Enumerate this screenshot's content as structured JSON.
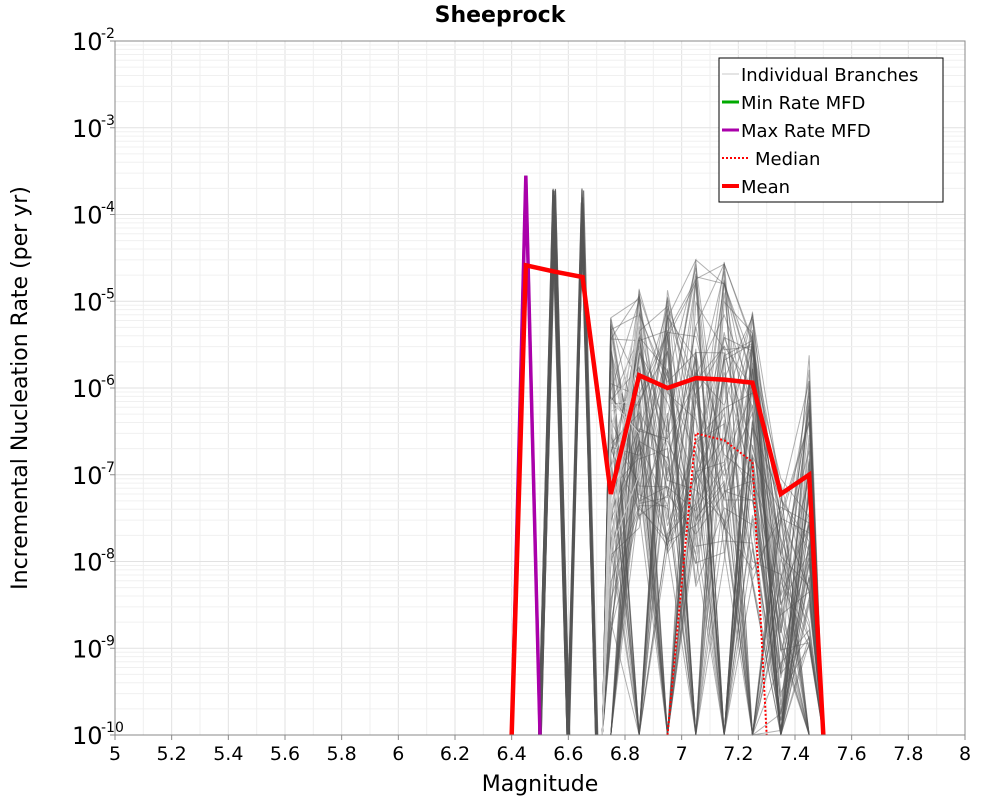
{
  "chart_data": {
    "type": "line",
    "title": "Sheeprock",
    "xlabel": "Magnitude",
    "ylabel": "Incremental Nucleation Rate (per yr)",
    "xlim": [
      5,
      8
    ],
    "ylim": [
      1e-10,
      0.01
    ],
    "yscale": "log",
    "grid": true,
    "legend_position": "top-right",
    "x_ticks": [
      "5",
      "5.2",
      "5.4",
      "5.6",
      "5.8",
      "6",
      "6.2",
      "6.4",
      "6.6",
      "6.8",
      "7",
      "7.2",
      "7.4",
      "7.6",
      "7.8",
      "8"
    ],
    "y_ticks": [
      {
        "base": "10",
        "exp": "-2"
      },
      {
        "base": "10",
        "exp": "-3"
      },
      {
        "base": "10",
        "exp": "-4"
      },
      {
        "base": "10",
        "exp": "-5"
      },
      {
        "base": "10",
        "exp": "-6"
      },
      {
        "base": "10",
        "exp": "-7"
      },
      {
        "base": "10",
        "exp": "-8"
      },
      {
        "base": "10",
        "exp": "-9"
      },
      {
        "base": "10",
        "exp": "-10"
      }
    ],
    "legend": [
      {
        "label": "Individual Branches",
        "color": "#c8c8c8",
        "style": "solid"
      },
      {
        "label": "Min Rate MFD",
        "color": "#00aa00",
        "style": "solid"
      },
      {
        "label": "Max Rate MFD",
        "color": "#aa00aa",
        "style": "solid"
      },
      {
        "label": "Median",
        "color": "#ff0000",
        "style": "dotted"
      },
      {
        "label": "Mean",
        "color": "#ff0000",
        "style": "solid"
      }
    ],
    "series": [
      {
        "name": "Min Rate MFD",
        "color": "#00aa00",
        "x": [
          6.4,
          6.45,
          6.5
        ],
        "y": [
          1e-10,
          0.00028,
          1e-10
        ]
      },
      {
        "name": "Max Rate MFD",
        "color": "#aa00aa",
        "x": [
          6.4,
          6.45,
          6.5
        ],
        "y": [
          1e-10,
          0.00028,
          1e-10
        ]
      },
      {
        "name": "Median",
        "color": "#ff0000",
        "x": [
          6.95,
          7.05,
          7.15,
          7.25,
          7.3
        ],
        "y": [
          1e-10,
          3e-07,
          2.5e-07,
          1.4e-07,
          1e-10
        ]
      },
      {
        "name": "Mean",
        "color": "#ff0000",
        "x": [
          6.4,
          6.45,
          6.55,
          6.65,
          6.75,
          6.85,
          6.95,
          7.05,
          7.15,
          7.25,
          7.35,
          7.45,
          7.5
        ],
        "y": [
          1e-10,
          2.6e-05,
          2.2e-05,
          1.9e-05,
          6e-08,
          1.4e-06,
          1e-06,
          1.3e-06,
          1.25e-06,
          1.15e-06,
          6e-08,
          1e-07,
          1e-10
        ]
      }
    ],
    "branch_spikes": [
      {
        "x": 6.55,
        "peak": 0.0002
      },
      {
        "x": 6.65,
        "peak": 0.0002
      },
      {
        "x": 6.85,
        "peak": 1.5e-05
      },
      {
        "x": 6.95,
        "peak": 2e-05
      },
      {
        "x": 7.05,
        "peak": 3e-05
      },
      {
        "x": 7.15,
        "peak": 3e-05
      },
      {
        "x": 7.25,
        "peak": 1e-05
      },
      {
        "x": 7.35,
        "peak": 1e-07
      },
      {
        "x": 7.45,
        "peak": 2.7e-06
      }
    ]
  }
}
